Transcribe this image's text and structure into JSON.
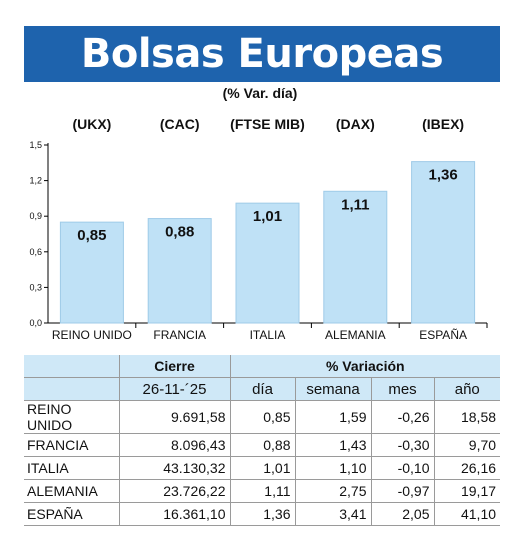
{
  "header": {
    "title": "Bolsas Europeas",
    "subtitle": "(% Var. día)"
  },
  "chart_data": {
    "type": "bar",
    "title": "Bolsas Europeas",
    "subtitle": "(% Var. día)",
    "categories": [
      "REINO UNIDO",
      "FRANCIA",
      "ITALIA",
      "ALEMANIA",
      "ESPAÑA"
    ],
    "index_labels": [
      "(UKX)",
      "(CAC)",
      "(FTSE MIB)",
      "(DAX)",
      "(IBEX)"
    ],
    "values": [
      0.85,
      0.88,
      1.01,
      1.11,
      1.36
    ],
    "value_labels": [
      "0,85",
      "0,88",
      "1,01",
      "1,11",
      "1,36"
    ],
    "yticks": [
      "0,0",
      "0,3",
      "0,6",
      "0,9",
      "1,2",
      "1,5"
    ],
    "ylim": [
      0,
      1.5
    ],
    "grid": false,
    "colors": {
      "bar": "#bfe1f6",
      "bar_stroke": "#9fcbe8",
      "axis": "#000000"
    }
  },
  "table": {
    "header_row1": {
      "cierre": "Cierre",
      "variacion": "% Variación"
    },
    "header_row2": {
      "date": "26-11-´25",
      "dia": "día",
      "semana": "semana",
      "mes": "mes",
      "ano": "año"
    },
    "rows": [
      {
        "name": "REINO UNIDO",
        "cierre": "9.691,58",
        "dia": "0,85",
        "semana": "1,59",
        "mes": "-0,26",
        "ano": "18,58"
      },
      {
        "name": "FRANCIA",
        "cierre": "8.096,43",
        "dia": "0,88",
        "semana": "1,43",
        "mes": "-0,30",
        "ano": "9,70"
      },
      {
        "name": "ITALIA",
        "cierre": "43.130,32",
        "dia": "1,01",
        "semana": "1,10",
        "mes": "-0,10",
        "ano": "26,16"
      },
      {
        "name": "ALEMANIA",
        "cierre": "23.726,22",
        "dia": "1,11",
        "semana": "2,75",
        "mes": "-0,97",
        "ano": "19,17"
      },
      {
        "name": "ESPAÑA",
        "cierre": "16.361,10",
        "dia": "1,36",
        "semana": "3,41",
        "mes": "2,05",
        "ano": "41,10"
      }
    ]
  }
}
